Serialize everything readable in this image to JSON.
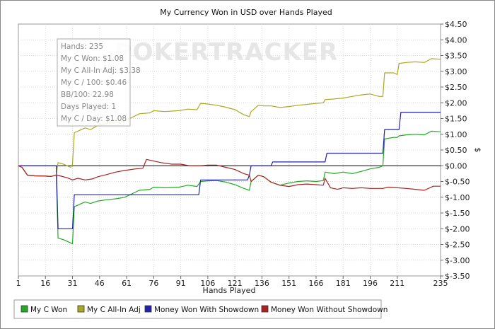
{
  "chart_data": {
    "type": "line",
    "title": "My Currency Won in USD over Hands Played",
    "xlabel": "Hands Played",
    "ylabel": "$",
    "watermark": "POKERTRACKER",
    "xlim": [
      1,
      235
    ],
    "ylim": [
      -3.5,
      4.5
    ],
    "x_ticks": [
      1,
      16,
      31,
      46,
      61,
      76,
      91,
      106,
      121,
      136,
      151,
      166,
      181,
      196,
      211,
      235
    ],
    "y_ticks": [
      {
        "value": 4.5,
        "label": "$4.50"
      },
      {
        "value": 4.0,
        "label": "$4.00"
      },
      {
        "value": 3.5,
        "label": "$3.50"
      },
      {
        "value": 3.0,
        "label": "$3.00"
      },
      {
        "value": 2.5,
        "label": "$2.50"
      },
      {
        "value": 2.0,
        "label": "$2.00"
      },
      {
        "value": 1.5,
        "label": "$1.50"
      },
      {
        "value": 1.0,
        "label": "$1.00"
      },
      {
        "value": 0.5,
        "label": "$0.50"
      },
      {
        "value": 0.0,
        "label": "$0.00"
      },
      {
        "value": -0.5,
        "label": "$-0.50"
      },
      {
        "value": -1.0,
        "label": "$-1.00"
      },
      {
        "value": -1.5,
        "label": "$-1.50"
      },
      {
        "value": -2.0,
        "label": "$-2.00"
      },
      {
        "value": -2.5,
        "label": "$-2.50"
      },
      {
        "value": -3.0,
        "label": "$-3.00"
      },
      {
        "value": -3.5,
        "label": "$-3.50"
      }
    ],
    "grid": true,
    "y_axis_position": "right",
    "legend_position": "bottom",
    "stats": [
      "Hands: 235",
      "My C Won: $1.08",
      "My C All-In Adj: $3.38",
      "My C / 100: $0.46",
      "BB/100: 22.98",
      "Days Played: 1",
      "My C / Day: $1.08"
    ],
    "series": [
      {
        "name": "My C Won",
        "color": "#22aa22",
        "points": [
          [
            1,
            0
          ],
          [
            3,
            -0.05
          ],
          [
            6,
            -0.3
          ],
          [
            10,
            -0.32
          ],
          [
            16,
            -0.33
          ],
          [
            19,
            -0.34
          ],
          [
            22,
            -0.3
          ],
          [
            23,
            -2.3
          ],
          [
            26,
            -2.35
          ],
          [
            28,
            -2.4
          ],
          [
            30,
            -2.45
          ],
          [
            31,
            -2.48
          ],
          [
            32,
            -1.3
          ],
          [
            34,
            -1.25
          ],
          [
            36,
            -1.2
          ],
          [
            38,
            -1.15
          ],
          [
            41,
            -1.2
          ],
          [
            45,
            -1.12
          ],
          [
            50,
            -1.08
          ],
          [
            55,
            -1.05
          ],
          [
            60,
            -1.0
          ],
          [
            68,
            -0.78
          ],
          [
            74,
            -0.75
          ],
          [
            76,
            -0.68
          ],
          [
            82,
            -0.7
          ],
          [
            90,
            -0.68
          ],
          [
            95,
            -0.62
          ],
          [
            100,
            -0.66
          ],
          [
            102,
            -0.5
          ],
          [
            106,
            -0.48
          ],
          [
            111,
            -0.47
          ],
          [
            116,
            -0.52
          ],
          [
            121,
            -0.6
          ],
          [
            126,
            -0.72
          ],
          [
            129,
            -0.78
          ],
          [
            130,
            -0.5
          ],
          [
            134,
            -0.3
          ],
          [
            137,
            -0.35
          ],
          [
            141,
            -0.52
          ],
          [
            146,
            -0.62
          ],
          [
            151,
            -0.55
          ],
          [
            156,
            -0.5
          ],
          [
            161,
            -0.48
          ],
          [
            166,
            -0.5
          ],
          [
            170,
            -0.47
          ],
          [
            171,
            -0.2
          ],
          [
            176,
            -0.25
          ],
          [
            181,
            -0.2
          ],
          [
            186,
            -0.25
          ],
          [
            191,
            -0.18
          ],
          [
            196,
            -0.1
          ],
          [
            201,
            -0.05
          ],
          [
            203,
            0.0
          ],
          [
            204,
            0.85
          ],
          [
            209,
            0.9
          ],
          [
            211,
            0.9
          ],
          [
            212,
            0.95
          ],
          [
            216,
            0.98
          ],
          [
            221,
            1.0
          ],
          [
            226,
            0.98
          ],
          [
            230,
            1.1
          ],
          [
            235,
            1.08
          ]
        ]
      },
      {
        "name": "My C All-In Adj",
        "color": "#aaaa22",
        "points": [
          [
            1,
            0
          ],
          [
            3,
            -0.05
          ],
          [
            6,
            -0.3
          ],
          [
            10,
            -0.32
          ],
          [
            16,
            -0.33
          ],
          [
            19,
            -0.34
          ],
          [
            22,
            -0.3
          ],
          [
            23,
            0.1
          ],
          [
            26,
            0.05
          ],
          [
            28,
            0.0
          ],
          [
            30,
            -0.05
          ],
          [
            31,
            0.05
          ],
          [
            32,
            1.05
          ],
          [
            34,
            1.1
          ],
          [
            36,
            1.15
          ],
          [
            38,
            1.2
          ],
          [
            41,
            1.15
          ],
          [
            45,
            1.28
          ],
          [
            50,
            1.35
          ],
          [
            55,
            1.38
          ],
          [
            60,
            1.42
          ],
          [
            68,
            1.65
          ],
          [
            74,
            1.68
          ],
          [
            76,
            1.75
          ],
          [
            82,
            1.72
          ],
          [
            90,
            1.75
          ],
          [
            95,
            1.8
          ],
          [
            100,
            1.78
          ],
          [
            102,
            1.98
          ],
          [
            106,
            1.96
          ],
          [
            111,
            1.92
          ],
          [
            116,
            1.86
          ],
          [
            121,
            1.78
          ],
          [
            126,
            1.62
          ],
          [
            129,
            1.56
          ],
          [
            130,
            1.72
          ],
          [
            134,
            1.92
          ],
          [
            137,
            1.9
          ],
          [
            141,
            1.9
          ],
          [
            146,
            1.85
          ],
          [
            151,
            1.88
          ],
          [
            156,
            1.92
          ],
          [
            161,
            1.95
          ],
          [
            166,
            1.98
          ],
          [
            170,
            2.0
          ],
          [
            171,
            2.1
          ],
          [
            176,
            2.12
          ],
          [
            181,
            2.15
          ],
          [
            186,
            2.2
          ],
          [
            191,
            2.25
          ],
          [
            196,
            2.28
          ],
          [
            201,
            2.2
          ],
          [
            203,
            2.2
          ],
          [
            204,
            2.95
          ],
          [
            209,
            2.95
          ],
          [
            211,
            2.9
          ],
          [
            212,
            3.25
          ],
          [
            216,
            3.28
          ],
          [
            221,
            3.3
          ],
          [
            226,
            3.28
          ],
          [
            230,
            3.4
          ],
          [
            235,
            3.38
          ]
        ]
      },
      {
        "name": "Money Won With Showdown",
        "color": "#2222aa",
        "points": [
          [
            1,
            0
          ],
          [
            22,
            0
          ],
          [
            23,
            -2.0
          ],
          [
            31,
            -2.0
          ],
          [
            32,
            -0.92
          ],
          [
            101,
            -0.92
          ],
          [
            102,
            -0.45
          ],
          [
            128,
            -0.45
          ],
          [
            129,
            -0.3
          ],
          [
            130,
            0.0
          ],
          [
            141,
            0.0
          ],
          [
            142,
            0.12
          ],
          [
            171,
            0.12
          ],
          [
            172,
            0.4
          ],
          [
            203,
            0.4
          ],
          [
            204,
            1.15
          ],
          [
            212,
            1.15
          ],
          [
            213,
            1.7
          ],
          [
            235,
            1.7
          ]
        ]
      },
      {
        "name": "Money Won Without Showdown",
        "color": "#aa2222",
        "points": [
          [
            1,
            0
          ],
          [
            3,
            -0.05
          ],
          [
            6,
            -0.3
          ],
          [
            10,
            -0.32
          ],
          [
            16,
            -0.33
          ],
          [
            19,
            -0.34
          ],
          [
            22,
            -0.3
          ],
          [
            24,
            -0.32
          ],
          [
            28,
            -0.38
          ],
          [
            31,
            -0.45
          ],
          [
            34,
            -0.4
          ],
          [
            38,
            -0.45
          ],
          [
            42,
            -0.42
          ],
          [
            45,
            -0.35
          ],
          [
            50,
            -0.28
          ],
          [
            55,
            -0.2
          ],
          [
            60,
            -0.15
          ],
          [
            66,
            -0.1
          ],
          [
            70,
            -0.08
          ],
          [
            72,
            0.2
          ],
          [
            76,
            0.15
          ],
          [
            80,
            0.1
          ],
          [
            86,
            0.05
          ],
          [
            91,
            0.05
          ],
          [
            96,
            0.0
          ],
          [
            101,
            0.0
          ],
          [
            106,
            0.02
          ],
          [
            111,
            0.02
          ],
          [
            116,
            -0.05
          ],
          [
            121,
            -0.12
          ],
          [
            126,
            -0.25
          ],
          [
            129,
            -0.3
          ],
          [
            130,
            -0.5
          ],
          [
            134,
            -0.3
          ],
          [
            137,
            -0.35
          ],
          [
            141,
            -0.52
          ],
          [
            146,
            -0.62
          ],
          [
            151,
            -0.66
          ],
          [
            156,
            -0.6
          ],
          [
            161,
            -0.58
          ],
          [
            166,
            -0.6
          ],
          [
            170,
            -0.62
          ],
          [
            171,
            -0.4
          ],
          [
            174,
            -0.7
          ],
          [
            178,
            -0.75
          ],
          [
            181,
            -0.7
          ],
          [
            186,
            -0.72
          ],
          [
            191,
            -0.7
          ],
          [
            196,
            -0.72
          ],
          [
            203,
            -0.72
          ],
          [
            206,
            -0.68
          ],
          [
            211,
            -0.7
          ],
          [
            216,
            -0.72
          ],
          [
            221,
            -0.75
          ],
          [
            226,
            -0.78
          ],
          [
            231,
            -0.65
          ],
          [
            235,
            -0.65
          ]
        ]
      }
    ]
  }
}
